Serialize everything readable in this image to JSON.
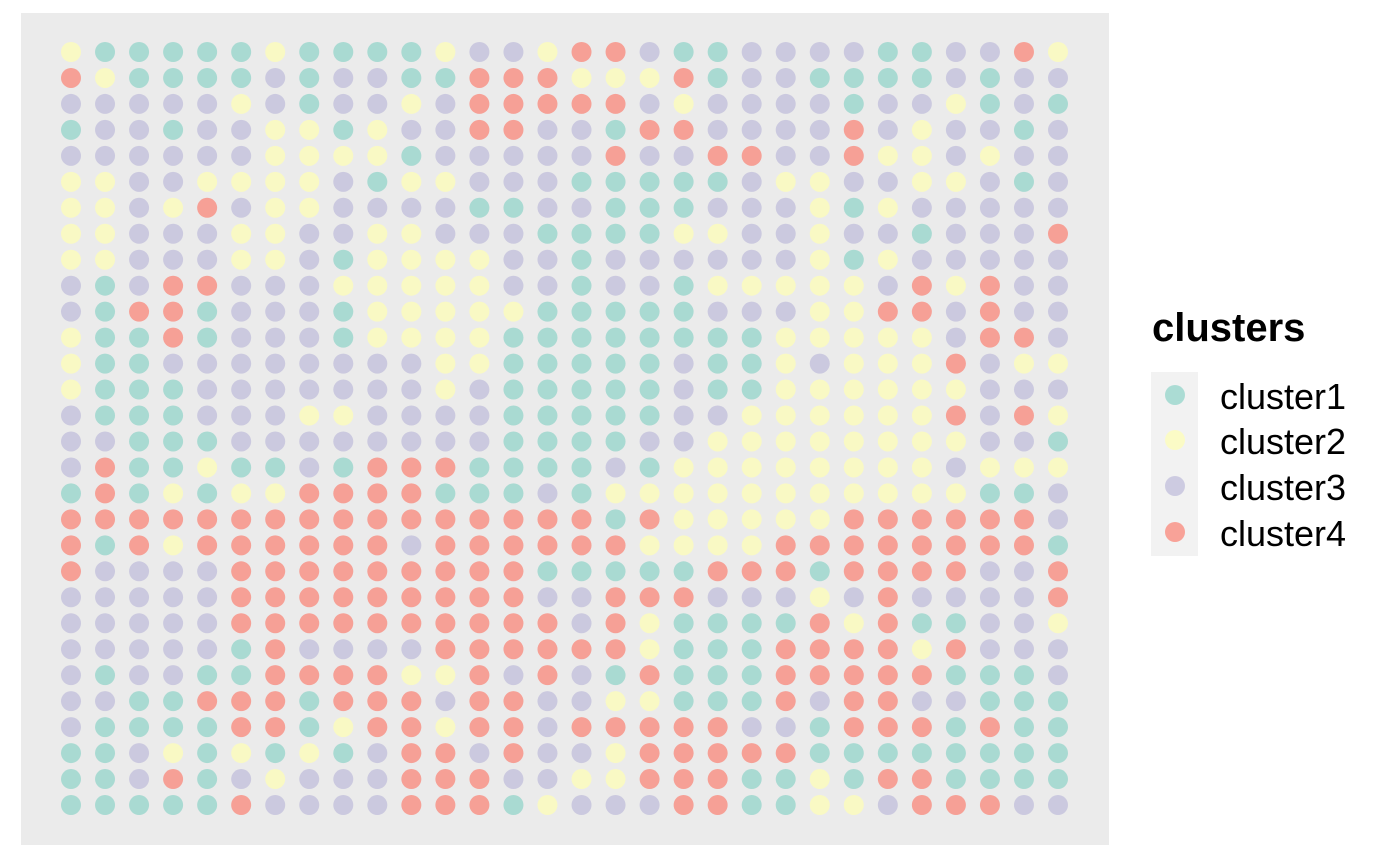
{
  "chart_data": {
    "type": "scatter",
    "title": "",
    "xlabel": "",
    "ylabel": "",
    "grid": false,
    "axes_shown": false,
    "legend_position": "right",
    "legend": {
      "title": "clusters",
      "entries": [
        {
          "label": "cluster1",
          "color": "#8dd3c7"
        },
        {
          "label": "cluster2",
          "color": "#ffffb3"
        },
        {
          "label": "cluster3",
          "color": "#bebada"
        },
        {
          "label": "cluster4",
          "color": "#fb8072"
        }
      ]
    },
    "n_cols": 30,
    "n_rows": 30,
    "grid_rows": [
      "211111211112332443113333113342",
      "421111313311444222413311113133",
      "333332313323444443233331332131",
      "133133221233443314433334323313",
      "333333222213333343344334223233",
      "223322223122333111113223322313",
      "223243223333113311133321233333",
      "223332233223331111223323313334",
      "223332231222233133333321233333",
      "313443332222233133122222342433",
      "314413331222221111133322443433",
      "211413331222211111111222223443",
      "211333333332211111311232224322",
      "211133333332311111311222222333",
      "311133322333311111332222224342",
      "331113333333311113322222222331",
      "341121131444111131222222223222",
      "141212244441113122222222222113",
      "444444444444444414222224444443",
      "414244444434444442222444444441",
      "433334444444441111144414444334",
      "333334444444443344433323433334",
      "333334444444444342111142411332",
      "333331433334444442111444424333",
      "313311444422434314111444441113",
      "331144414443443322111434433111",
      "311114412442443444443314441411",
      "113212121344343324444411111111",
      "113413233344433224441121441111",
      "111114333344412333441122344433"
    ]
  }
}
